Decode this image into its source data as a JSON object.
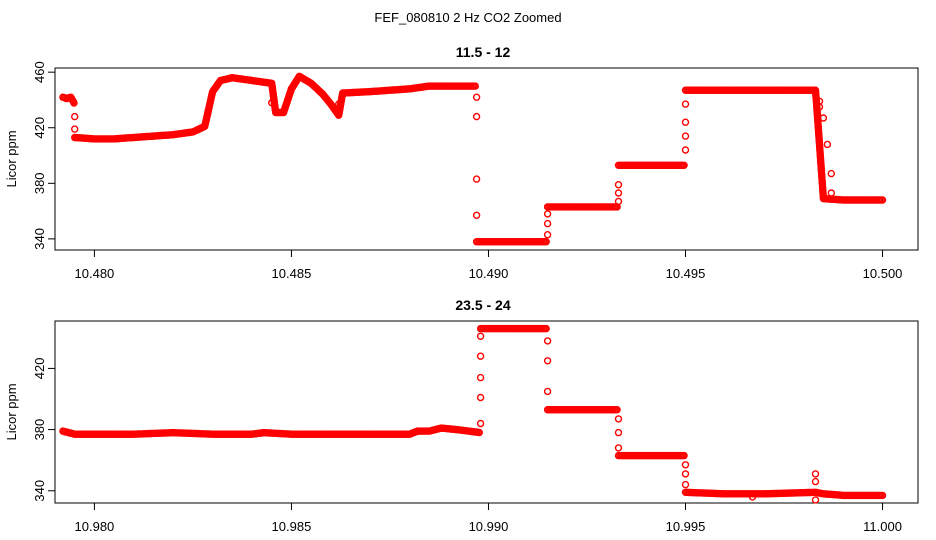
{
  "figure": {
    "title": "FEF_080810  2 Hz CO2 Zoomed"
  },
  "chart_data": [
    {
      "type": "scatter",
      "title": "11.5 - 12",
      "xlabel": "",
      "ylabel": "Licor ppm",
      "xlim": [
        10.479,
        10.5009
      ],
      "ylim": [
        332,
        463
      ],
      "x_ticks": [
        10.48,
        10.485,
        10.49,
        10.495,
        10.5
      ],
      "x_tick_labels": [
        "10.480",
        "10.485",
        "10.490",
        "10.495",
        "10.500"
      ],
      "y_ticks": [
        340,
        380,
        420,
        460
      ],
      "y_tick_labels": [
        "340",
        "380",
        "420",
        "460"
      ],
      "marker": "open-circle",
      "color": "#ff0000",
      "grid": false,
      "series_polyline": [
        [
          10.4792,
          442
        ],
        [
          10.4793,
          441
        ],
        [
          10.4794,
          442
        ],
        [
          10.4795,
          437
        ],
        [
          10.4795,
          413
        ],
        [
          10.48,
          412
        ],
        [
          10.4805,
          412
        ],
        [
          10.481,
          413
        ],
        [
          10.4815,
          414
        ],
        [
          10.482,
          415
        ],
        [
          10.4825,
          417
        ],
        [
          10.4828,
          421
        ],
        [
          10.483,
          446
        ],
        [
          10.4832,
          454
        ],
        [
          10.4835,
          456
        ],
        [
          10.484,
          454
        ],
        [
          10.4845,
          452
        ],
        [
          10.4846,
          431
        ],
        [
          10.4848,
          431
        ],
        [
          10.485,
          448
        ],
        [
          10.4852,
          457
        ],
        [
          10.4855,
          452
        ],
        [
          10.4858,
          444
        ],
        [
          10.486,
          437
        ],
        [
          10.4862,
          429
        ],
        [
          10.4863,
          445
        ],
        [
          10.487,
          446
        ],
        [
          10.4875,
          447
        ],
        [
          10.488,
          448
        ],
        [
          10.4885,
          450
        ],
        [
          10.489,
          450
        ],
        [
          10.4897,
          450
        ],
        [
          10.4897,
          338
        ],
        [
          10.4905,
          338
        ],
        [
          10.4915,
          338
        ],
        [
          10.4915,
          363
        ],
        [
          10.4925,
          363
        ],
        [
          10.4933,
          363
        ],
        [
          10.4933,
          393
        ],
        [
          10.494,
          393
        ],
        [
          10.495,
          393
        ],
        [
          10.495,
          447
        ],
        [
          10.496,
          447
        ],
        [
          10.497,
          447
        ],
        [
          10.4983,
          447
        ],
        [
          10.4985,
          369
        ],
        [
          10.499,
          368
        ],
        [
          10.5,
          368
        ]
      ],
      "series_scatter": [
        [
          10.4795,
          428
        ],
        [
          10.4795,
          419
        ],
        [
          10.4845,
          438
        ],
        [
          10.4862,
          437
        ],
        [
          10.4897,
          442
        ],
        [
          10.4897,
          428
        ],
        [
          10.4897,
          383
        ],
        [
          10.4897,
          357
        ],
        [
          10.4915,
          343
        ],
        [
          10.4915,
          351
        ],
        [
          10.4915,
          358
        ],
        [
          10.4933,
          367
        ],
        [
          10.4933,
          373
        ],
        [
          10.4933,
          379
        ],
        [
          10.495,
          404
        ],
        [
          10.495,
          414
        ],
        [
          10.495,
          424
        ],
        [
          10.495,
          437
        ],
        [
          10.4984,
          439
        ],
        [
          10.4984,
          435
        ],
        [
          10.4985,
          427
        ],
        [
          10.4986,
          408
        ],
        [
          10.4987,
          387
        ],
        [
          10.4987,
          373
        ]
      ]
    },
    {
      "type": "scatter",
      "title": "23.5 - 24",
      "xlabel": "",
      "ylabel": "Licor ppm",
      "xlim": [
        10.979,
        11.0009
      ],
      "ylim": [
        332,
        451
      ],
      "x_ticks": [
        10.98,
        10.985,
        10.99,
        10.995,
        11.0
      ],
      "x_tick_labels": [
        "10.980",
        "10.985",
        "10.990",
        "10.995",
        "11.000"
      ],
      "y_ticks": [
        340,
        380,
        420
      ],
      "y_tick_labels": [
        "340",
        "380",
        "420"
      ],
      "marker": "open-circle",
      "color": "#ff0000",
      "grid": false,
      "series_polyline": [
        [
          10.9792,
          379
        ],
        [
          10.9795,
          377
        ],
        [
          10.98,
          377
        ],
        [
          10.981,
          377
        ],
        [
          10.982,
          378
        ],
        [
          10.983,
          377
        ],
        [
          10.984,
          377
        ],
        [
          10.9843,
          378
        ],
        [
          10.985,
          377
        ],
        [
          10.986,
          377
        ],
        [
          10.987,
          377
        ],
        [
          10.988,
          377
        ],
        [
          10.9882,
          379
        ],
        [
          10.9885,
          379
        ],
        [
          10.9888,
          381
        ],
        [
          10.9892,
          380
        ],
        [
          10.9898,
          378
        ],
        [
          10.9898,
          446
        ],
        [
          10.9905,
          446
        ],
        [
          10.9915,
          446
        ],
        [
          10.9915,
          393
        ],
        [
          10.9925,
          393
        ],
        [
          10.9933,
          393
        ],
        [
          10.9933,
          363
        ],
        [
          10.994,
          363
        ],
        [
          10.995,
          363
        ],
        [
          10.995,
          339
        ],
        [
          10.996,
          338
        ],
        [
          10.997,
          338
        ],
        [
          10.9983,
          339
        ],
        [
          10.9985,
          338
        ],
        [
          10.999,
          337
        ],
        [
          11.0,
          337
        ]
      ],
      "series_scatter": [
        [
          10.9898,
          384
        ],
        [
          10.9898,
          401
        ],
        [
          10.9898,
          414
        ],
        [
          10.9898,
          428
        ],
        [
          10.9898,
          441
        ],
        [
          10.9915,
          438
        ],
        [
          10.9915,
          425
        ],
        [
          10.9915,
          405
        ],
        [
          10.9933,
          387
        ],
        [
          10.9933,
          378
        ],
        [
          10.9933,
          368
        ],
        [
          10.995,
          357
        ],
        [
          10.995,
          351
        ],
        [
          10.995,
          344
        ],
        [
          10.9983,
          351
        ],
        [
          10.9983,
          346
        ],
        [
          10.9983,
          334
        ],
        [
          10.9967,
          336
        ]
      ]
    }
  ]
}
